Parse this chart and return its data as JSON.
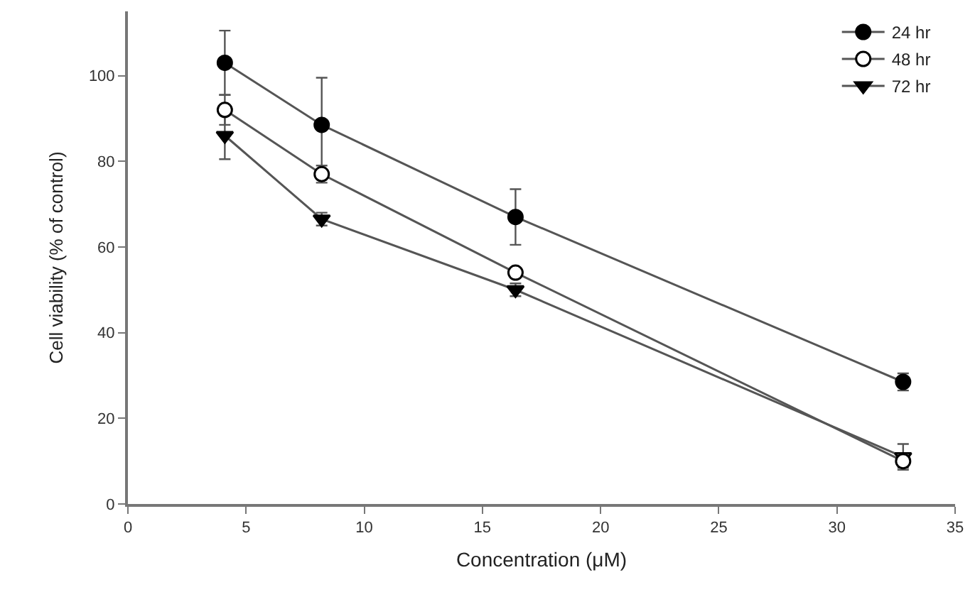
{
  "chart_data": {
    "type": "line",
    "xlabel": "Concentration (μM)",
    "ylabel": "Cell viability (% of control)",
    "x": [
      4.1,
      8.2,
      16.4,
      32.8
    ],
    "series": [
      {
        "name": "24 hr",
        "color": "#000000",
        "marker": "circle",
        "values": [
          103,
          88.5,
          67,
          28.5
        ],
        "errors": [
          7.5,
          11,
          6.5,
          2
        ]
      },
      {
        "name": "48 hr",
        "color": "#000000",
        "marker": "circle-open",
        "values": [
          92,
          77,
          54,
          10
        ],
        "errors": [
          3.5,
          2,
          null,
          1.5
        ]
      },
      {
        "name": "72 hr",
        "color": "#000000",
        "marker": "triangle-down",
        "values": [
          86,
          66.5,
          50,
          11
        ],
        "errors": [
          5.5,
          1.5,
          1.5,
          3
        ]
      }
    ],
    "xlim": [
      0,
      35
    ],
    "xticks": [
      0,
      5,
      10,
      15,
      20,
      25,
      30,
      35
    ],
    "ylim": [
      0,
      115
    ],
    "yticks": [
      0,
      20,
      40,
      60,
      80,
      100
    ],
    "legend": "top right",
    "line_style": "solid"
  }
}
